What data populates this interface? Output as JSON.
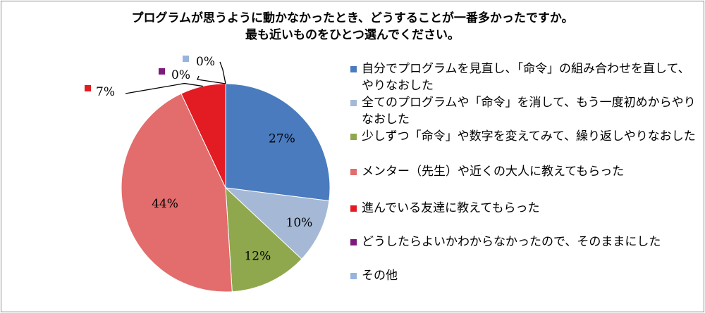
{
  "chart_data": {
    "type": "pie",
    "title": "プログラムが思うように動かなかったとき、どうすることが一番多かったですか。",
    "subtitle": "最も近いものをひとつ選んでください。",
    "slices": [
      {
        "label": "自分でプログラムを見直し、「命令」の組み合わせを直して、やりなおした",
        "value": 27,
        "value_label": "27%",
        "color": "#4a7bbe"
      },
      {
        "label": "全てのプログラムや「命令」を消して、もう一度初めからやりなおした",
        "value": 10,
        "value_label": "10%",
        "color": "#a5b9d6"
      },
      {
        "label": "少しずつ「命令」や数字を変えてみて、繰り返しやりなおした",
        "value": 12,
        "value_label": "12%",
        "color": "#8fa84e"
      },
      {
        "label": "メンター（先生）や近くの大人に教えてもらった",
        "value": 44,
        "value_label": "44%",
        "color": "#e36c6c"
      },
      {
        "label": "進んでいる友達に教えてもらった",
        "value": 7,
        "value_label": "7%",
        "color": "#e31b23"
      },
      {
        "label": "どうしたらよいかわからなかったので、そのままにした",
        "value": 0,
        "value_label": "0%",
        "color": "#7d1a7a"
      },
      {
        "label": "その他",
        "value": 0,
        "value_label": "0%",
        "color": "#97b4df"
      }
    ],
    "legend_position": "right"
  }
}
